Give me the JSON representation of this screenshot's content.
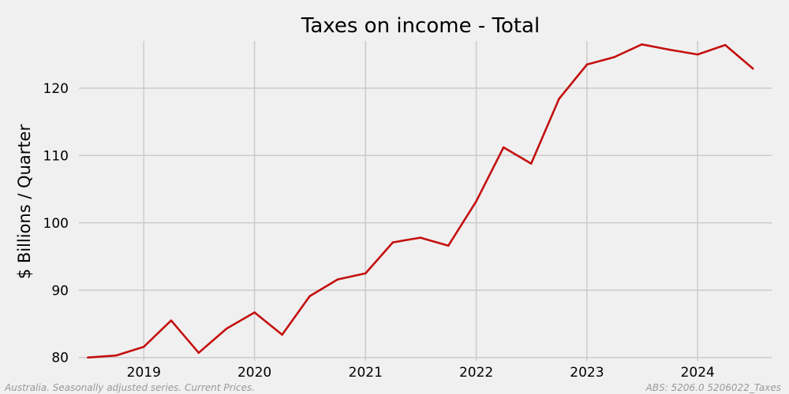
{
  "chart_data": {
    "type": "line",
    "title": "Taxes on income - Total",
    "xlabel": "",
    "ylabel": "$ Billions / Quarter",
    "x": [
      "2018-07-01",
      "2018-10-01",
      "2019-01-01",
      "2019-04-01",
      "2019-07-01",
      "2019-10-01",
      "2020-01-01",
      "2020-04-01",
      "2020-07-01",
      "2020-10-01",
      "2021-01-01",
      "2021-04-01",
      "2021-07-01",
      "2021-10-01",
      "2022-01-01",
      "2022-04-01",
      "2022-07-01",
      "2022-10-01",
      "2023-01-01",
      "2023-04-01",
      "2023-07-01",
      "2023-10-01",
      "2024-01-01",
      "2024-04-01",
      "2024-07-01"
    ],
    "series": [
      {
        "values": [
          80.0,
          80.3,
          81.6,
          85.5,
          80.7,
          84.3,
          86.7,
          83.4,
          89.1,
          91.6,
          92.5,
          97.1,
          97.8,
          96.6,
          103.2,
          111.2,
          108.8,
          118.4,
          123.5,
          124.6,
          126.5,
          125.7,
          125.0,
          126.4,
          122.9
        ],
        "color": "#c40f0f"
      }
    ],
    "xticks": [
      "2019",
      "2020",
      "2021",
      "2022",
      "2023",
      "2024"
    ],
    "yticks": [
      80,
      90,
      100,
      110,
      120
    ],
    "xlim": [
      "2018-06-01",
      "2024-09-01"
    ],
    "ylim": [
      79.5,
      127.0
    ],
    "grid": true,
    "legend": "none"
  },
  "footer": {
    "left": "Australia. Seasonally adjusted series. Current Prices.",
    "right": "ABS: 5206.0 5206022_Taxes"
  }
}
